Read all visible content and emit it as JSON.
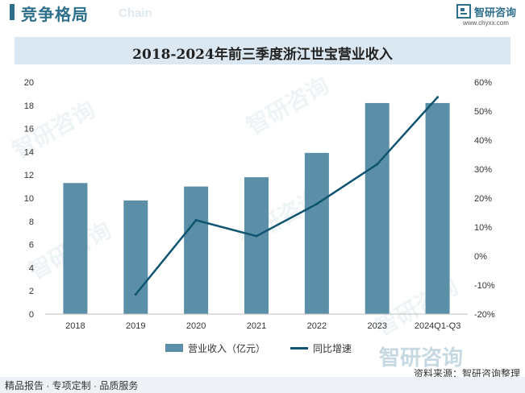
{
  "header": {
    "title": "竞争格局",
    "subtitle": "Chain"
  },
  "brand": {
    "name": "智研咨询",
    "url": "www.chyxx.com",
    "watermark": "智研咨询"
  },
  "chart_data": {
    "type": "bar",
    "title": "2018-2024年前三季度浙江世宝营业收入",
    "categories": [
      "2018",
      "2019",
      "2020",
      "2021",
      "2022",
      "2023",
      "2024Q1-Q3"
    ],
    "series": [
      {
        "name": "营业收入（亿元）",
        "type": "bar",
        "axis": "left",
        "values": [
          11.3,
          9.8,
          11.0,
          11.8,
          13.9,
          18.2,
          18.2
        ]
      },
      {
        "name": "同比增速",
        "type": "line",
        "axis": "right",
        "values": [
          null,
          -13.2,
          12.4,
          6.9,
          18.0,
          31.7,
          54.8
        ]
      }
    ],
    "y_left": {
      "min": 0,
      "max": 20,
      "step": 2,
      "ticks": [
        "0",
        "2",
        "4",
        "6",
        "8",
        "10",
        "12",
        "14",
        "16",
        "18",
        "20"
      ]
    },
    "y_right": {
      "min": -20,
      "max": 60,
      "step": 10,
      "ticks": [
        "-20%",
        "-10%",
        "0%",
        "10%",
        "20%",
        "30%",
        "40%",
        "50%",
        "60%"
      ]
    },
    "grid": false,
    "legend_position": "bottom"
  },
  "colors": {
    "bar": "#5b8fa8",
    "line": "#0f5570",
    "accent": "#2e6f8c",
    "title_band": "#dbe8f1"
  },
  "source": "资料来源：智研咨询整理",
  "footer": "精品报告 · 专项定制 · 品质服务"
}
